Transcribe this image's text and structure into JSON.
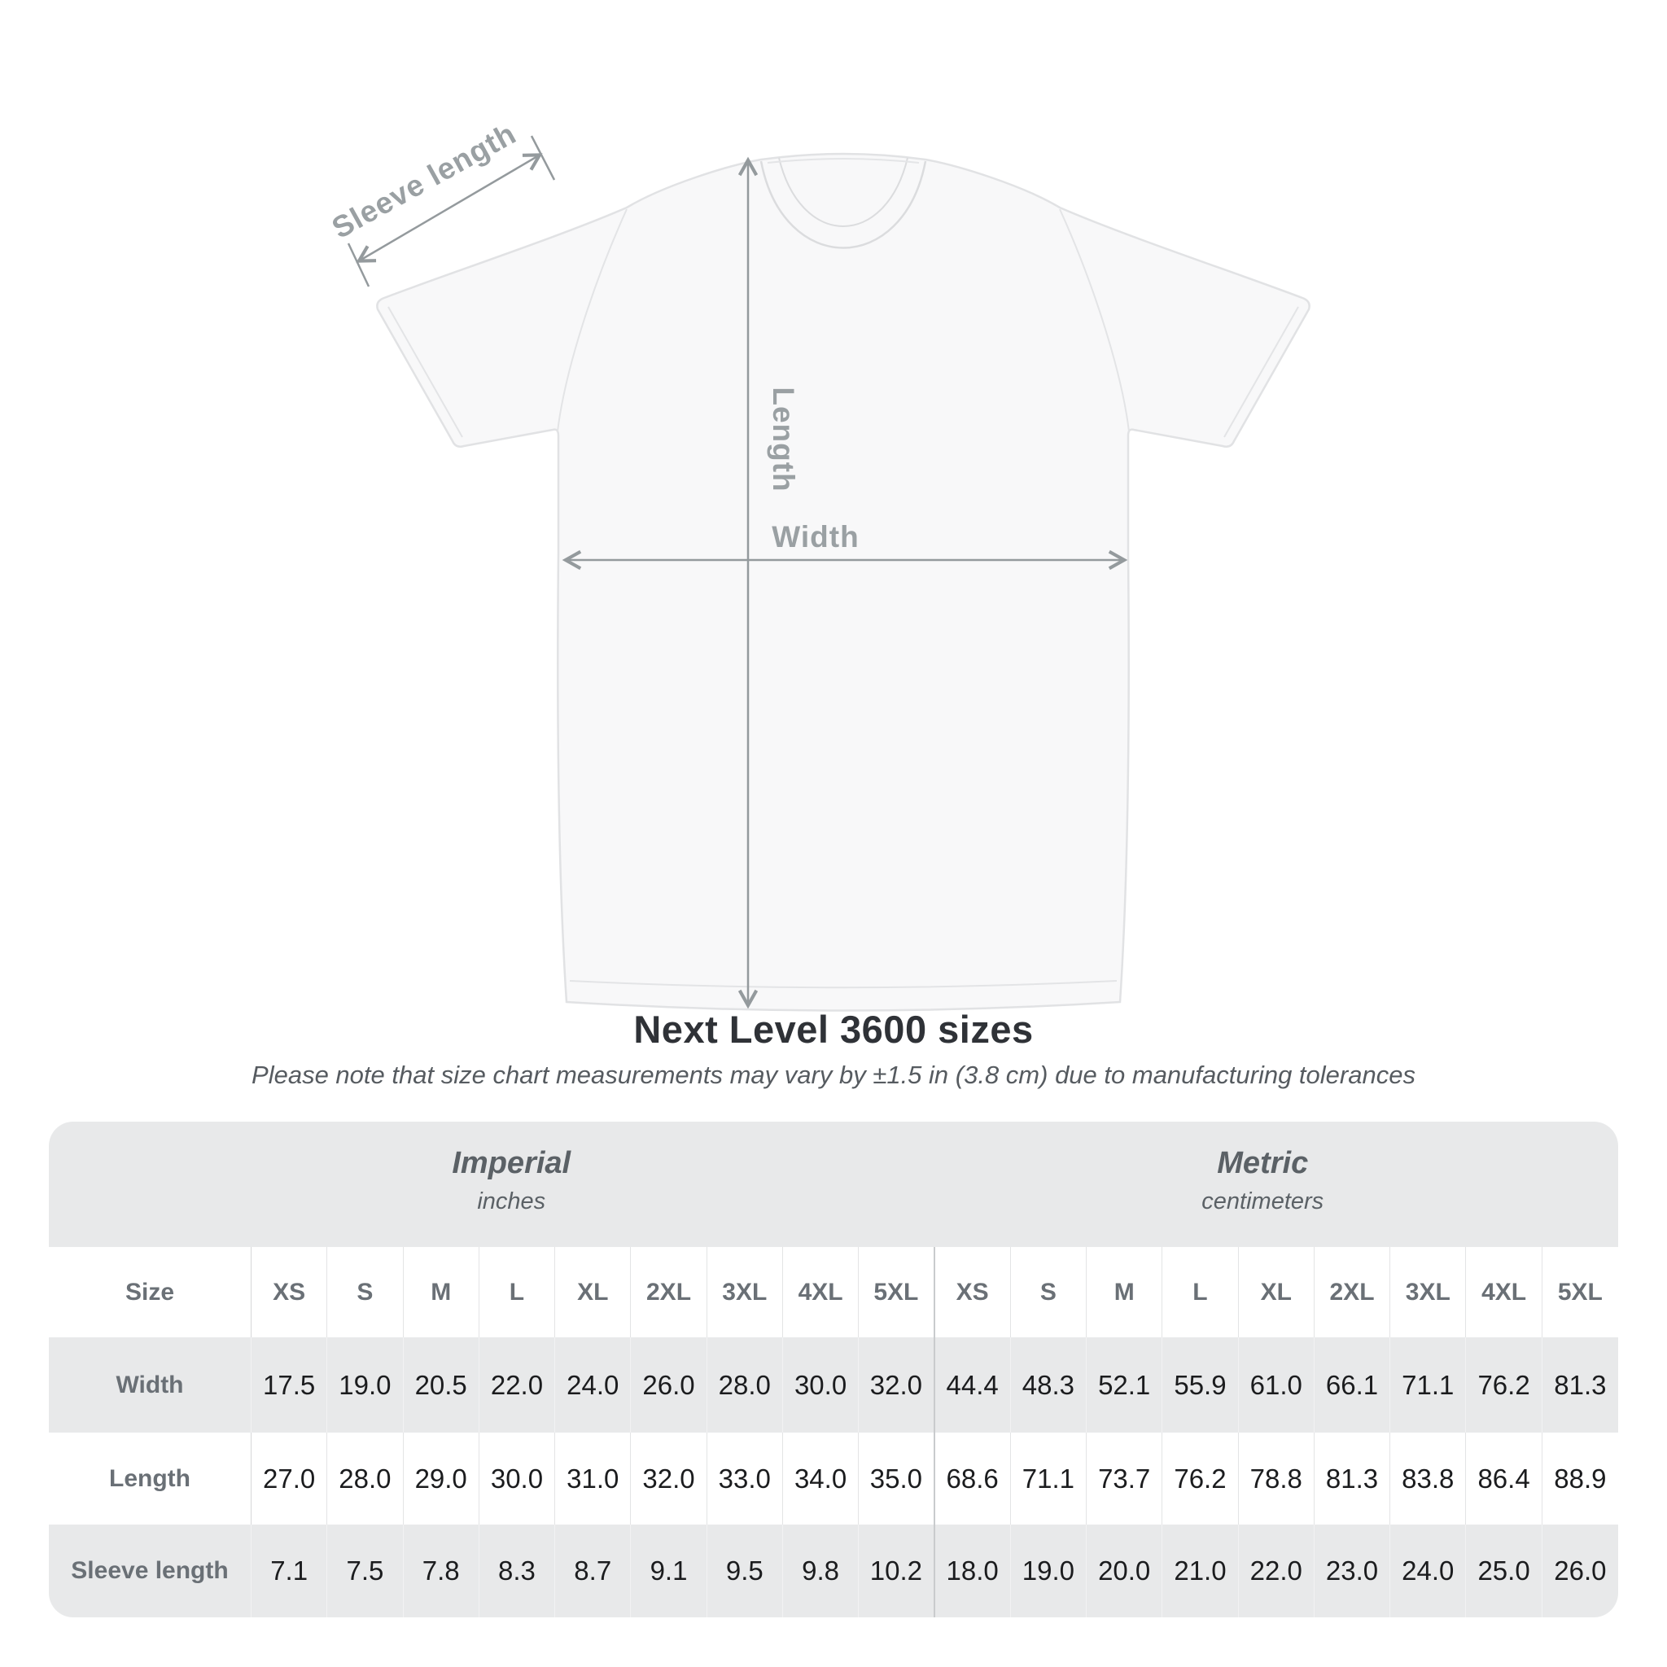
{
  "diagram": {
    "labels": {
      "sleeve": "Sleeve length",
      "length": "Length",
      "width": "Width"
    }
  },
  "title": "Next Level 3600 sizes",
  "subtitle": "Please note that size chart measurements may vary by ±1.5 in (3.8 cm) due to manufacturing tolerances",
  "table": {
    "unit_groups": [
      {
        "name": "Imperial",
        "unit": "inches"
      },
      {
        "name": "Metric",
        "unit": "centimeters"
      }
    ],
    "size_label": "Size",
    "sizes": [
      "XS",
      "S",
      "M",
      "L",
      "XL",
      "2XL",
      "3XL",
      "4XL",
      "5XL"
    ],
    "rows": [
      {
        "label": "Width",
        "imperial": [
          "17.5",
          "19.0",
          "20.5",
          "22.0",
          "24.0",
          "26.0",
          "28.0",
          "30.0",
          "32.0"
        ],
        "metric": [
          "44.4",
          "48.3",
          "52.1",
          "55.9",
          "61.0",
          "66.1",
          "71.1",
          "76.2",
          "81.3"
        ]
      },
      {
        "label": "Length",
        "imperial": [
          "27.0",
          "28.0",
          "29.0",
          "30.0",
          "31.0",
          "32.0",
          "33.0",
          "34.0",
          "35.0"
        ],
        "metric": [
          "68.6",
          "71.1",
          "73.7",
          "76.2",
          "78.8",
          "81.3",
          "83.8",
          "86.4",
          "88.9"
        ]
      },
      {
        "label": "Sleeve length",
        "imperial": [
          "7.1",
          "7.5",
          "7.8",
          "8.3",
          "8.7",
          "9.1",
          "9.5",
          "9.8",
          "10.2"
        ],
        "metric": [
          "18.0",
          "19.0",
          "20.0",
          "21.0",
          "22.0",
          "23.0",
          "24.0",
          "25.0",
          "26.0"
        ]
      }
    ]
  },
  "colors": {
    "stripe_gray": "#e8e9ea",
    "label_text": "#6a7076",
    "value_text": "#1b1c1e",
    "diagram_gray": "#9aa0a3",
    "arrow_gray": "#949a9d"
  }
}
